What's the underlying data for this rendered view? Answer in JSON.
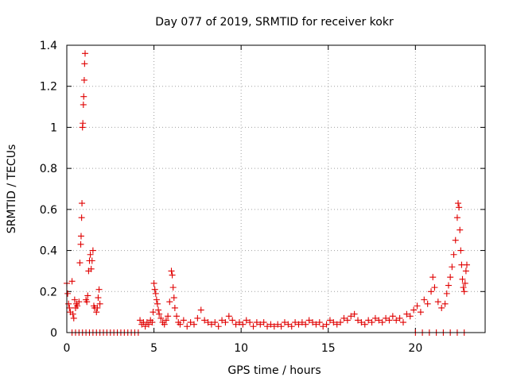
{
  "chart_data": {
    "type": "scatter",
    "title": "Day 077 of 2019, SRMTID for receiver kokr",
    "xlabel": "GPS time / hours",
    "ylabel": "SRMTID / TECUs",
    "xlim": [
      0,
      24
    ],
    "ylim": [
      0,
      1.4
    ],
    "xticks": [
      0,
      5,
      10,
      15,
      20
    ],
    "xtick_labels": [
      "0",
      "5",
      "10",
      "15",
      "20"
    ],
    "yticks": [
      0,
      0.2,
      0.4,
      0.6,
      0.8,
      1.0,
      1.2,
      1.4
    ],
    "ytick_labels": [
      "0",
      "0.2",
      "0.4",
      "0.6",
      "0.8",
      "1",
      "1.2",
      "1.4"
    ],
    "grid": true,
    "marker": "+",
    "color": "#e00000",
    "series": [
      {
        "name": "SRMTID",
        "points": [
          [
            0.0,
            0.24
          ],
          [
            0.05,
            0.19
          ],
          [
            0.1,
            0.14
          ],
          [
            0.15,
            0.12
          ],
          [
            0.2,
            0.1
          ],
          [
            0.3,
            0.25
          ],
          [
            0.35,
            0.09
          ],
          [
            0.4,
            0.07
          ],
          [
            0.45,
            0.16
          ],
          [
            0.5,
            0.12
          ],
          [
            0.55,
            0.14
          ],
          [
            0.6,
            0.13
          ],
          [
            0.7,
            0.15
          ],
          [
            0.75,
            0.34
          ],
          [
            0.8,
            0.43
          ],
          [
            0.82,
            0.47
          ],
          [
            0.85,
            0.56
          ],
          [
            0.87,
            0.63
          ],
          [
            0.9,
            1.0
          ],
          [
            0.92,
            1.02
          ],
          [
            0.95,
            1.11
          ],
          [
            0.97,
            1.15
          ],
          [
            1.0,
            1.23
          ],
          [
            1.02,
            1.31
          ],
          [
            1.05,
            1.36
          ],
          [
            1.1,
            0.16
          ],
          [
            1.15,
            0.15
          ],
          [
            1.2,
            0.18
          ],
          [
            1.25,
            0.3
          ],
          [
            1.3,
            0.35
          ],
          [
            1.35,
            0.38
          ],
          [
            1.4,
            0.31
          ],
          [
            1.45,
            0.35
          ],
          [
            1.5,
            0.4
          ],
          [
            1.55,
            0.13
          ],
          [
            1.6,
            0.12
          ],
          [
            1.7,
            0.1
          ],
          [
            1.75,
            0.12
          ],
          [
            1.8,
            0.17
          ],
          [
            1.85,
            0.21
          ],
          [
            1.9,
            0.14
          ],
          [
            0.3,
            0.0
          ],
          [
            0.5,
            0.0
          ],
          [
            0.7,
            0.0
          ],
          [
            0.9,
            0.0
          ],
          [
            1.1,
            0.0
          ],
          [
            1.3,
            0.0
          ],
          [
            1.5,
            0.0
          ],
          [
            1.7,
            0.0
          ],
          [
            1.9,
            0.0
          ],
          [
            2.1,
            0.0
          ],
          [
            2.3,
            0.0
          ],
          [
            2.5,
            0.0
          ],
          [
            2.7,
            0.0
          ],
          [
            2.9,
            0.0
          ],
          [
            3.1,
            0.0
          ],
          [
            3.3,
            0.0
          ],
          [
            3.5,
            0.0
          ],
          [
            3.7,
            0.0
          ],
          [
            3.9,
            0.0
          ],
          [
            4.1,
            0.0
          ],
          [
            4.2,
            0.06
          ],
          [
            4.3,
            0.04
          ],
          [
            4.4,
            0.05
          ],
          [
            4.5,
            0.03
          ],
          [
            4.6,
            0.05
          ],
          [
            4.7,
            0.04
          ],
          [
            4.8,
            0.06
          ],
          [
            4.9,
            0.05
          ],
          [
            4.95,
            0.1
          ],
          [
            5.0,
            0.24
          ],
          [
            5.05,
            0.21
          ],
          [
            5.1,
            0.19
          ],
          [
            5.15,
            0.16
          ],
          [
            5.2,
            0.14
          ],
          [
            5.25,
            0.11
          ],
          [
            5.3,
            0.09
          ],
          [
            5.4,
            0.07
          ],
          [
            5.5,
            0.05
          ],
          [
            5.6,
            0.04
          ],
          [
            5.7,
            0.06
          ],
          [
            5.8,
            0.08
          ],
          [
            5.9,
            0.15
          ],
          [
            6.0,
            0.3
          ],
          [
            6.05,
            0.28
          ],
          [
            6.1,
            0.22
          ],
          [
            6.15,
            0.17
          ],
          [
            6.2,
            0.12
          ],
          [
            6.3,
            0.08
          ],
          [
            6.4,
            0.05
          ],
          [
            6.5,
            0.04
          ],
          [
            6.7,
            0.06
          ],
          [
            6.9,
            0.03
          ],
          [
            7.1,
            0.05
          ],
          [
            7.3,
            0.04
          ],
          [
            7.5,
            0.07
          ],
          [
            7.7,
            0.11
          ],
          [
            7.9,
            0.06
          ],
          [
            8.1,
            0.05
          ],
          [
            8.3,
            0.04
          ],
          [
            8.5,
            0.05
          ],
          [
            8.7,
            0.03
          ],
          [
            8.9,
            0.06
          ],
          [
            9.1,
            0.05
          ],
          [
            9.3,
            0.08
          ],
          [
            9.5,
            0.06
          ],
          [
            9.7,
            0.04
          ],
          [
            9.9,
            0.05
          ],
          [
            10.1,
            0.04
          ],
          [
            10.3,
            0.06
          ],
          [
            10.5,
            0.05
          ],
          [
            10.7,
            0.03
          ],
          [
            10.9,
            0.05
          ],
          [
            11.1,
            0.04
          ],
          [
            11.3,
            0.05
          ],
          [
            11.5,
            0.03
          ],
          [
            11.7,
            0.04
          ],
          [
            11.9,
            0.03
          ],
          [
            12.1,
            0.04
          ],
          [
            12.3,
            0.03
          ],
          [
            12.5,
            0.05
          ],
          [
            12.7,
            0.04
          ],
          [
            12.9,
            0.03
          ],
          [
            13.1,
            0.05
          ],
          [
            13.3,
            0.04
          ],
          [
            13.5,
            0.05
          ],
          [
            13.7,
            0.04
          ],
          [
            13.9,
            0.06
          ],
          [
            14.1,
            0.05
          ],
          [
            14.3,
            0.04
          ],
          [
            14.5,
            0.05
          ],
          [
            14.7,
            0.03
          ],
          [
            14.9,
            0.04
          ],
          [
            15.1,
            0.06
          ],
          [
            15.3,
            0.05
          ],
          [
            15.5,
            0.04
          ],
          [
            15.7,
            0.05
          ],
          [
            15.9,
            0.07
          ],
          [
            16.1,
            0.06
          ],
          [
            16.3,
            0.08
          ],
          [
            16.5,
            0.09
          ],
          [
            16.7,
            0.06
          ],
          [
            16.9,
            0.05
          ],
          [
            17.1,
            0.04
          ],
          [
            17.3,
            0.06
          ],
          [
            17.5,
            0.05
          ],
          [
            17.7,
            0.07
          ],
          [
            17.9,
            0.06
          ],
          [
            18.1,
            0.05
          ],
          [
            18.3,
            0.07
          ],
          [
            18.5,
            0.06
          ],
          [
            18.7,
            0.08
          ],
          [
            18.9,
            0.06
          ],
          [
            19.1,
            0.07
          ],
          [
            19.3,
            0.05
          ],
          [
            19.5,
            0.09
          ],
          [
            19.7,
            0.08
          ],
          [
            19.9,
            0.11
          ],
          [
            20.1,
            0.13
          ],
          [
            20.3,
            0.1
          ],
          [
            20.5,
            0.16
          ],
          [
            20.7,
            0.14
          ],
          [
            20.9,
            0.2
          ],
          [
            21.0,
            0.27
          ],
          [
            21.1,
            0.22
          ],
          [
            21.3,
            0.15
          ],
          [
            21.5,
            0.12
          ],
          [
            21.7,
            0.14
          ],
          [
            21.8,
            0.19
          ],
          [
            21.9,
            0.23
          ],
          [
            22.0,
            0.27
          ],
          [
            22.1,
            0.32
          ],
          [
            22.2,
            0.38
          ],
          [
            22.3,
            0.45
          ],
          [
            22.4,
            0.56
          ],
          [
            22.45,
            0.63
          ],
          [
            22.5,
            0.61
          ],
          [
            22.55,
            0.5
          ],
          [
            22.6,
            0.4
          ],
          [
            22.65,
            0.33
          ],
          [
            22.7,
            0.26
          ],
          [
            22.75,
            0.22
          ],
          [
            22.8,
            0.2
          ],
          [
            22.85,
            0.24
          ],
          [
            22.9,
            0.3
          ],
          [
            22.95,
            0.33
          ],
          [
            20.0,
            0.0
          ],
          [
            20.4,
            0.0
          ],
          [
            20.8,
            0.0
          ],
          [
            21.2,
            0.0
          ],
          [
            21.6,
            0.0
          ],
          [
            22.0,
            0.0
          ],
          [
            22.4,
            0.0
          ],
          [
            22.8,
            0.0
          ]
        ]
      }
    ]
  }
}
